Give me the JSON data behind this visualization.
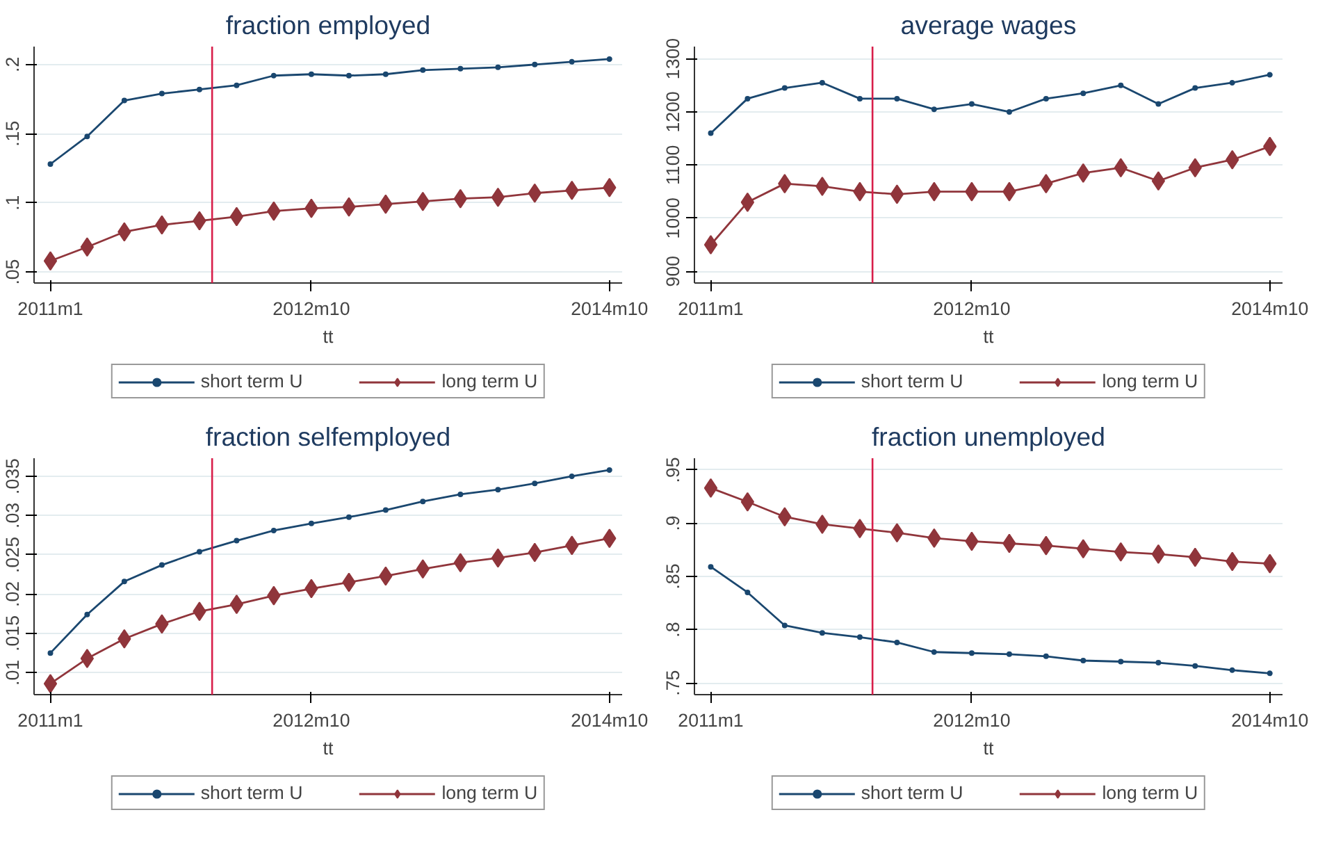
{
  "chart_data": [
    {
      "type": "line",
      "title": "fraction employed",
      "xlabel": "tt",
      "x": [
        "2011-01",
        "2011-04",
        "2011-07",
        "2011-10",
        "2012-01",
        "2012-04",
        "2012-07",
        "2012-10",
        "2013-01",
        "2013-04",
        "2013-07",
        "2013-10",
        "2014-01",
        "2014-04",
        "2014-07",
        "2014-10"
      ],
      "xlim": [
        "2010-11-22",
        "2014-11-01"
      ],
      "xticks": [
        {
          "value": "2011-01",
          "label": "2011m1"
        },
        {
          "value": "2012-10",
          "label": "2012m10"
        },
        {
          "value": "2014-10",
          "label": "2014m10"
        }
      ],
      "ylim": [
        0.042,
        0.213
      ],
      "yticks": [
        {
          "value": 0.05,
          "label": ".05"
        },
        {
          "value": 0.1,
          "label": ".1"
        },
        {
          "value": 0.15,
          "label": ".15"
        },
        {
          "value": 0.2,
          "label": ".2"
        }
      ],
      "grid": "y",
      "legend": "bottom",
      "ref_lines": [
        {
          "axis": "x",
          "value": "2012-02",
          "color": "#d81e4a"
        }
      ],
      "series": [
        {
          "name": "short term U",
          "color": "#1a476f",
          "marker": "circle",
          "values": [
            0.128,
            0.148,
            0.174,
            0.179,
            0.182,
            0.185,
            0.192,
            0.193,
            0.192,
            0.193,
            0.196,
            0.197,
            0.198,
            0.2,
            0.202,
            0.204
          ]
        },
        {
          "name": "long term U",
          "color": "#90353b",
          "marker": "diamond",
          "values": [
            0.058,
            0.068,
            0.079,
            0.084,
            0.087,
            0.09,
            0.094,
            0.096,
            0.097,
            0.099,
            0.101,
            0.103,
            0.104,
            0.107,
            0.109,
            0.111
          ]
        }
      ]
    },
    {
      "type": "line",
      "title": "average wages",
      "xlabel": "tt",
      "x": [
        "2011-01",
        "2011-04",
        "2011-07",
        "2011-10",
        "2012-01",
        "2012-04",
        "2012-07",
        "2012-10",
        "2013-01",
        "2013-04",
        "2013-07",
        "2013-10",
        "2014-01",
        "2014-04",
        "2014-07",
        "2014-10"
      ],
      "xlim": [
        "2010-11-22",
        "2014-11-01"
      ],
      "xticks": [
        {
          "value": "2011-01",
          "label": "2011m1"
        },
        {
          "value": "2012-10",
          "label": "2012m10"
        },
        {
          "value": "2014-10",
          "label": "2014m10"
        }
      ],
      "ylim": [
        878,
        1323
      ],
      "yticks": [
        900,
        1000,
        1100,
        1200,
        1300
      ],
      "grid": "y",
      "legend": "bottom",
      "ref_lines": [
        {
          "axis": "x",
          "value": "2012-02",
          "color": "#d81e4a"
        }
      ],
      "series": [
        {
          "name": "short term U",
          "color": "#1a476f",
          "marker": "circle",
          "values": [
            1160,
            1225,
            1245,
            1255,
            1225,
            1225,
            1205,
            1215,
            1200,
            1225,
            1235,
            1250,
            1215,
            1245,
            1255,
            1270
          ]
        },
        {
          "name": "long term U",
          "color": "#90353b",
          "marker": "diamond",
          "values": [
            950,
            1030,
            1065,
            1060,
            1050,
            1045,
            1050,
            1050,
            1050,
            1065,
            1085,
            1095,
            1070,
            1095,
            1110,
            1135
          ]
        }
      ]
    },
    {
      "type": "line",
      "title": "fraction selfemployed",
      "xlabel": "tt",
      "x": [
        "2011-01",
        "2011-04",
        "2011-07",
        "2011-10",
        "2012-01",
        "2012-04",
        "2012-07",
        "2012-10",
        "2013-01",
        "2013-04",
        "2013-07",
        "2013-10",
        "2014-01",
        "2014-04",
        "2014-07",
        "2014-10"
      ],
      "xlim": [
        "2010-11-22",
        "2014-11-01"
      ],
      "xticks": [
        {
          "value": "2011-01",
          "label": "2011m1"
        },
        {
          "value": "2012-10",
          "label": "2012m10"
        },
        {
          "value": "2014-10",
          "label": "2014m10"
        }
      ],
      "ylim": [
        0.0072,
        0.0373
      ],
      "yticks": [
        {
          "value": 0.01,
          "label": ".01"
        },
        {
          "value": 0.015,
          "label": ".015"
        },
        {
          "value": 0.02,
          "label": ".02"
        },
        {
          "value": 0.025,
          "label": ".025"
        },
        {
          "value": 0.03,
          "label": ".03"
        },
        {
          "value": 0.035,
          "label": ".035"
        }
      ],
      "grid": "y",
      "legend": "bottom",
      "ref_lines": [
        {
          "axis": "x",
          "value": "2012-02",
          "color": "#d81e4a"
        }
      ],
      "series": [
        {
          "name": "short term U",
          "color": "#1a476f",
          "marker": "circle",
          "values": [
            0.0125,
            0.0174,
            0.0216,
            0.0237,
            0.0254,
            0.0268,
            0.0281,
            0.029,
            0.0298,
            0.0307,
            0.0318,
            0.0327,
            0.0333,
            0.0341,
            0.035,
            0.0358
          ]
        },
        {
          "name": "long term U",
          "color": "#90353b",
          "marker": "diamond",
          "values": [
            0.0086,
            0.0118,
            0.0143,
            0.0162,
            0.0178,
            0.0187,
            0.0198,
            0.0207,
            0.0215,
            0.0223,
            0.0232,
            0.024,
            0.0246,
            0.0253,
            0.0262,
            0.0271
          ]
        }
      ]
    },
    {
      "type": "line",
      "title": "fraction unemployed",
      "xlabel": "tt",
      "x": [
        "2011-01",
        "2011-04",
        "2011-07",
        "2011-10",
        "2012-01",
        "2012-04",
        "2012-07",
        "2012-10",
        "2013-01",
        "2013-04",
        "2013-07",
        "2013-10",
        "2014-01",
        "2014-04",
        "2014-07",
        "2014-10"
      ],
      "xlim": [
        "2010-11-22",
        "2014-11-01"
      ],
      "xticks": [
        {
          "value": "2011-01",
          "label": "2011m1"
        },
        {
          "value": "2012-10",
          "label": "2012m10"
        },
        {
          "value": "2014-10",
          "label": "2014m10"
        }
      ],
      "ylim": [
        0.739,
        0.961
      ],
      "yticks": [
        {
          "value": 0.75,
          "label": ".75"
        },
        {
          "value": 0.8,
          "label": ".8"
        },
        {
          "value": 0.85,
          "label": ".85"
        },
        {
          "value": 0.9,
          "label": ".9"
        },
        {
          "value": 0.95,
          "label": ".95"
        }
      ],
      "grid": "y",
      "legend": "bottom",
      "ref_lines": [
        {
          "axis": "x",
          "value": "2012-02",
          "color": "#d81e4a"
        }
      ],
      "series": [
        {
          "name": "short term U",
          "color": "#1a476f",
          "marker": "circle",
          "values": [
            0.859,
            0.835,
            0.804,
            0.797,
            0.793,
            0.788,
            0.779,
            0.778,
            0.777,
            0.775,
            0.771,
            0.77,
            0.769,
            0.766,
            0.762,
            0.759
          ]
        },
        {
          "name": "long term U",
          "color": "#90353b",
          "marker": "diamond",
          "values": [
            0.933,
            0.92,
            0.906,
            0.899,
            0.895,
            0.891,
            0.886,
            0.883,
            0.881,
            0.879,
            0.876,
            0.873,
            0.871,
            0.868,
            0.864,
            0.862
          ]
        }
      ]
    }
  ]
}
